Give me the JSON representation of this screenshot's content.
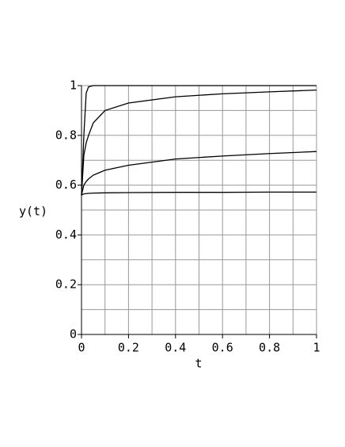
{
  "chart_data": {
    "type": "line",
    "xlabel": "t",
    "ylabel": "y(t)",
    "x": [
      0,
      0.01,
      0.02,
      0.03,
      0.05,
      0.1,
      0.2,
      0.4,
      0.6,
      0.8,
      1
    ],
    "series": [
      {
        "color": "#000000",
        "values": [
          0.56,
          0.8,
          0.97,
          0.995,
          1,
          1,
          1,
          1,
          1,
          1,
          1
        ]
      },
      {
        "color": "#000000",
        "values": [
          0.56,
          0.72,
          0.77,
          0.8,
          0.85,
          0.9,
          0.93,
          0.955,
          0.967,
          0.975,
          0.982
        ]
      },
      {
        "color": "#000000",
        "values": [
          0.56,
          0.6,
          0.615,
          0.625,
          0.64,
          0.66,
          0.68,
          0.705,
          0.717,
          0.727,
          0.735
        ]
      },
      {
        "color": "#000000",
        "values": [
          0.56,
          0.565,
          0.566,
          0.567,
          0.568,
          0.569,
          0.57,
          0.571,
          0.571,
          0.572,
          0.572
        ]
      }
    ],
    "xlim": [
      0,
      1
    ],
    "ylim": [
      0,
      1
    ],
    "xticks": [
      0,
      0.2,
      0.4,
      0.6,
      0.8,
      1
    ],
    "yticks": [
      0,
      0.2,
      0.4,
      0.6,
      0.8,
      1
    ],
    "x_minor_ticks": [
      0.1,
      0.3,
      0.5,
      0.7,
      0.9
    ],
    "y_minor_ticks": [
      0.1,
      0.3,
      0.5,
      0.7,
      0.9
    ],
    "grid": true
  }
}
